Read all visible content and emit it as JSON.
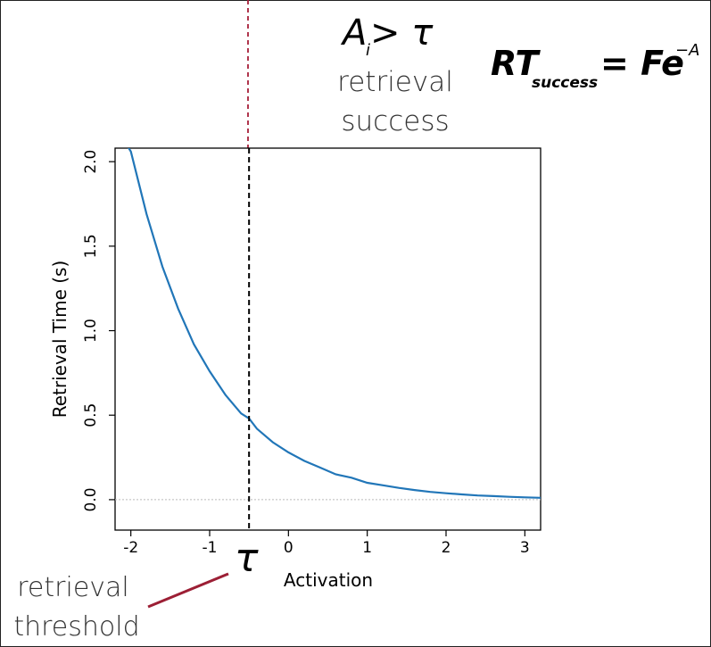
{
  "annotations": {
    "condition_main": "A",
    "condition_sub": "i",
    "condition_op": " > τ",
    "condition_label_line1": "retrieval",
    "condition_label_line2": "success",
    "formula_main": "RT",
    "formula_sub": "success",
    "formula_rhs": "= Fe",
    "formula_exp": "−A",
    "tau_symbol": "τ",
    "threshold_label_line1": "retrieval",
    "threshold_label_line2": "threshold"
  },
  "colors": {
    "curve": "#2176b8",
    "threshold_line_top": "#a8203a",
    "threshold_line_plot": "#000000",
    "pointer": "#9c1f35",
    "zero_line": "#bbbbbb"
  },
  "chart_data": {
    "type": "line",
    "xlabel": "Activation",
    "ylabel": "Retrieval Time (s)",
    "xlim": [
      -2.2,
      3.2
    ],
    "ylim": [
      -0.18,
      2.08
    ],
    "xticks": [
      "-2",
      "-1",
      "0",
      "1",
      "2",
      "3"
    ],
    "yticks": [
      "0.0",
      "0.5",
      "1.0",
      "1.5",
      "2.0"
    ],
    "threshold_x": -0.5,
    "grid": false,
    "series": [
      {
        "x": [
          -2.2,
          -2.0,
          -1.8,
          -1.6,
          -1.4,
          -1.2,
          -1.0,
          -0.8,
          -0.6,
          -0.5,
          -0.4,
          -0.2,
          0.0,
          0.2,
          0.4,
          0.6,
          0.8,
          1.0,
          1.2,
          1.4,
          1.6,
          1.8,
          2.0,
          2.2,
          2.4,
          2.6,
          2.8,
          3.0,
          3.2
        ],
        "y": [
          2.21,
          2.06,
          1.69,
          1.38,
          1.13,
          0.92,
          0.76,
          0.62,
          0.51,
          0.48,
          0.42,
          0.34,
          0.28,
          0.23,
          0.19,
          0.15,
          0.13,
          0.1,
          0.085,
          0.07,
          0.057,
          0.046,
          0.038,
          0.031,
          0.025,
          0.021,
          0.017,
          0.014,
          0.011
        ]
      }
    ]
  }
}
